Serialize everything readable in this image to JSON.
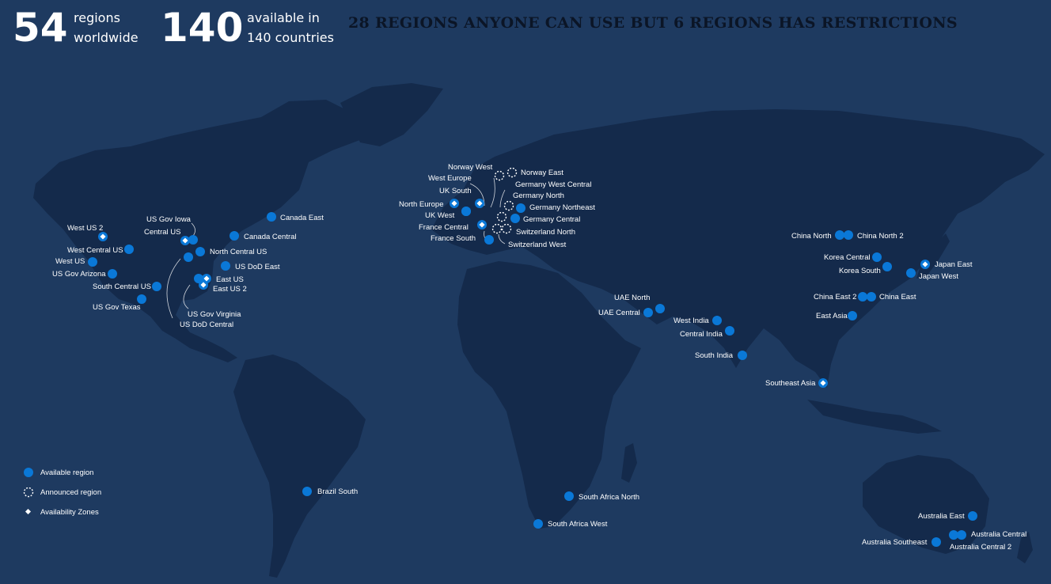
{
  "stats": [
    {
      "number": "54",
      "line1": "regions",
      "line2": "worldwide"
    },
    {
      "number": "140",
      "line1": "available in",
      "line2": "140 countries"
    }
  ],
  "headline": "28 REGIONS ANYONE CAN USE BUT 6 REGIONS HAS RESTRICTIONS",
  "colors": {
    "background": "#1e3a60",
    "land": "#142a4b",
    "available": "#0a78d7",
    "zone_marker": "#ffffff",
    "headline": "#0b1526"
  },
  "legend": [
    {
      "kind": "available",
      "label": "Available region"
    },
    {
      "kind": "announced",
      "label": "Announced region"
    },
    {
      "kind": "zones",
      "label": "Availability Zones"
    }
  ],
  "regions": [
    {
      "name": "West US 2",
      "status": "available",
      "zones": true
    },
    {
      "name": "West Central US",
      "status": "available",
      "zones": false
    },
    {
      "name": "West US",
      "status": "available",
      "zones": false
    },
    {
      "name": "US Gov Arizona",
      "status": "available",
      "zones": false
    },
    {
      "name": "South Central US",
      "status": "available",
      "zones": false
    },
    {
      "name": "US Gov Texas",
      "status": "available",
      "zones": false
    },
    {
      "name": "US Gov Iowa",
      "status": "available",
      "zones": false
    },
    {
      "name": "Central US",
      "status": "available",
      "zones": true
    },
    {
      "name": "North Central US",
      "status": "available",
      "zones": false
    },
    {
      "name": "Canada Central",
      "status": "available",
      "zones": false
    },
    {
      "name": "Canada East",
      "status": "available",
      "zones": false
    },
    {
      "name": "US DoD East",
      "status": "available",
      "zones": false
    },
    {
      "name": "East US",
      "status": "available",
      "zones": true
    },
    {
      "name": "East US 2",
      "status": "available",
      "zones": true
    },
    {
      "name": "US Gov Virginia",
      "status": "available",
      "zones": false
    },
    {
      "name": "US DoD Central",
      "status": "available",
      "zones": false
    },
    {
      "name": "Brazil South",
      "status": "available",
      "zones": false
    },
    {
      "name": "Norway West",
      "status": "announced",
      "zones": false
    },
    {
      "name": "Norway East",
      "status": "announced",
      "zones": false
    },
    {
      "name": "West Europe",
      "status": "available",
      "zones": true
    },
    {
      "name": "UK South",
      "status": "available",
      "zones": true
    },
    {
      "name": "North Europe",
      "status": "available",
      "zones": true
    },
    {
      "name": "UK West",
      "status": "available",
      "zones": false
    },
    {
      "name": "France Central",
      "status": "available",
      "zones": true
    },
    {
      "name": "France South",
      "status": "available",
      "zones": false
    },
    {
      "name": "Germany West Central",
      "status": "announced",
      "zones": false
    },
    {
      "name": "Germany North",
      "status": "announced",
      "zones": false
    },
    {
      "name": "Germany Northeast",
      "status": "available",
      "zones": false
    },
    {
      "name": "Germany Central",
      "status": "available",
      "zones": false
    },
    {
      "name": "Switzerland North",
      "status": "announced",
      "zones": false
    },
    {
      "name": "Switzerland West",
      "status": "announced",
      "zones": false
    },
    {
      "name": "UAE North",
      "status": "available",
      "zones": false
    },
    {
      "name": "UAE Central",
      "status": "available",
      "zones": false
    },
    {
      "name": "West India",
      "status": "available",
      "zones": false
    },
    {
      "name": "Central India",
      "status": "available",
      "zones": false
    },
    {
      "name": "South India",
      "status": "available",
      "zones": false
    },
    {
      "name": "South Africa North",
      "status": "available",
      "zones": false
    },
    {
      "name": "South Africa West",
      "status": "available",
      "zones": false
    },
    {
      "name": "China North",
      "status": "available",
      "zones": false
    },
    {
      "name": "China North 2",
      "status": "available",
      "zones": false
    },
    {
      "name": "Korea Central",
      "status": "available",
      "zones": false
    },
    {
      "name": "Korea South",
      "status": "available",
      "zones": false
    },
    {
      "name": "Japan East",
      "status": "available",
      "zones": true
    },
    {
      "name": "Japan West",
      "status": "available",
      "zones": false
    },
    {
      "name": "China East 2",
      "status": "available",
      "zones": false
    },
    {
      "name": "China East",
      "status": "available",
      "zones": false
    },
    {
      "name": "East Asia",
      "status": "available",
      "zones": false
    },
    {
      "name": "Southeast Asia",
      "status": "available",
      "zones": true
    },
    {
      "name": "Australia East",
      "status": "available",
      "zones": false
    },
    {
      "name": "Australia Central",
      "status": "available",
      "zones": false
    },
    {
      "name": "Australia Central 2",
      "status": "available",
      "zones": false
    },
    {
      "name": "Australia Southeast",
      "status": "available",
      "zones": false
    }
  ]
}
